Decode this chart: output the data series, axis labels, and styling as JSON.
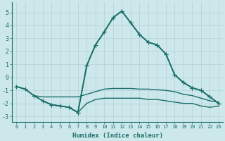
{
  "title": "",
  "xlabel": "Humidex (Indice chaleur)",
  "background_color": "#cde8eb",
  "grid_color": "#b8d4d8",
  "line_color": "#1a6e6a",
  "xlim": [
    -0.5,
    23.5
  ],
  "ylim": [
    -3.4,
    5.8
  ],
  "yticks": [
    -3,
    -2,
    -1,
    0,
    1,
    2,
    3,
    4,
    5
  ],
  "xticks": [
    0,
    1,
    2,
    3,
    4,
    5,
    6,
    7,
    8,
    9,
    10,
    11,
    12,
    13,
    14,
    15,
    16,
    17,
    18,
    19,
    20,
    21,
    22,
    23
  ],
  "series": [
    {
      "x": [
        0,
        1,
        2,
        3,
        4,
        5,
        6,
        7,
        8,
        9,
        10,
        11,
        12,
        13,
        14,
        15,
        16,
        17,
        18,
        19,
        20,
        21,
        22,
        23
      ],
      "y": [
        -0.7,
        -0.9,
        -1.4,
        -1.8,
        -2.1,
        -2.2,
        -2.3,
        -2.7,
        0.9,
        2.5,
        3.5,
        4.6,
        5.1,
        4.2,
        3.3,
        2.7,
        2.5,
        1.8,
        0.2,
        -0.4,
        -0.8,
        -1.0,
        -1.5,
        -2.0
      ],
      "marker": "+",
      "markersize": 4,
      "linewidth": 1.2
    },
    {
      "x": [
        0,
        1,
        2,
        3,
        4,
        5,
        6,
        7,
        8,
        9,
        10,
        11,
        12,
        13,
        14,
        15,
        16,
        17,
        18,
        19,
        20,
        21,
        22,
        23
      ],
      "y": [
        -0.7,
        -0.9,
        -1.4,
        -1.5,
        -1.5,
        -1.5,
        -1.5,
        -1.5,
        -1.3,
        -1.1,
        -0.9,
        -0.85,
        -0.85,
        -0.85,
        -0.9,
        -0.9,
        -0.95,
        -1.0,
        -1.1,
        -1.3,
        -1.4,
        -1.6,
        -1.8,
        -1.9
      ],
      "marker": null,
      "markersize": 0,
      "linewidth": 1.0
    },
    {
      "x": [
        0,
        1,
        2,
        3,
        4,
        5,
        6,
        7,
        8,
        9,
        10,
        11,
        12,
        13,
        14,
        15,
        16,
        17,
        18,
        19,
        20,
        21,
        22,
        23
      ],
      "y": [
        -0.7,
        -0.9,
        -1.4,
        -1.8,
        -2.1,
        -2.2,
        -2.3,
        -2.7,
        -2.0,
        -1.7,
        -1.6,
        -1.6,
        -1.6,
        -1.6,
        -1.6,
        -1.7,
        -1.7,
        -1.8,
        -1.9,
        -2.0,
        -2.0,
        -2.2,
        -2.3,
        -2.2
      ],
      "marker": null,
      "markersize": 0,
      "linewidth": 1.0
    },
    {
      "x": [
        3,
        4,
        5,
        6,
        7,
        8,
        9,
        10,
        11,
        12,
        13,
        14,
        15,
        16,
        17,
        18,
        19,
        20,
        21,
        22,
        23
      ],
      "y": [
        -1.8,
        -2.1,
        -2.2,
        -2.3,
        -2.7,
        0.9,
        2.5,
        3.5,
        4.6,
        5.1,
        4.2,
        3.3,
        2.7,
        2.5,
        1.8,
        0.2,
        -0.4,
        -0.8,
        -1.0,
        -1.5,
        -2.0
      ],
      "marker": "+",
      "markersize": 4,
      "linewidth": 1.2
    }
  ]
}
